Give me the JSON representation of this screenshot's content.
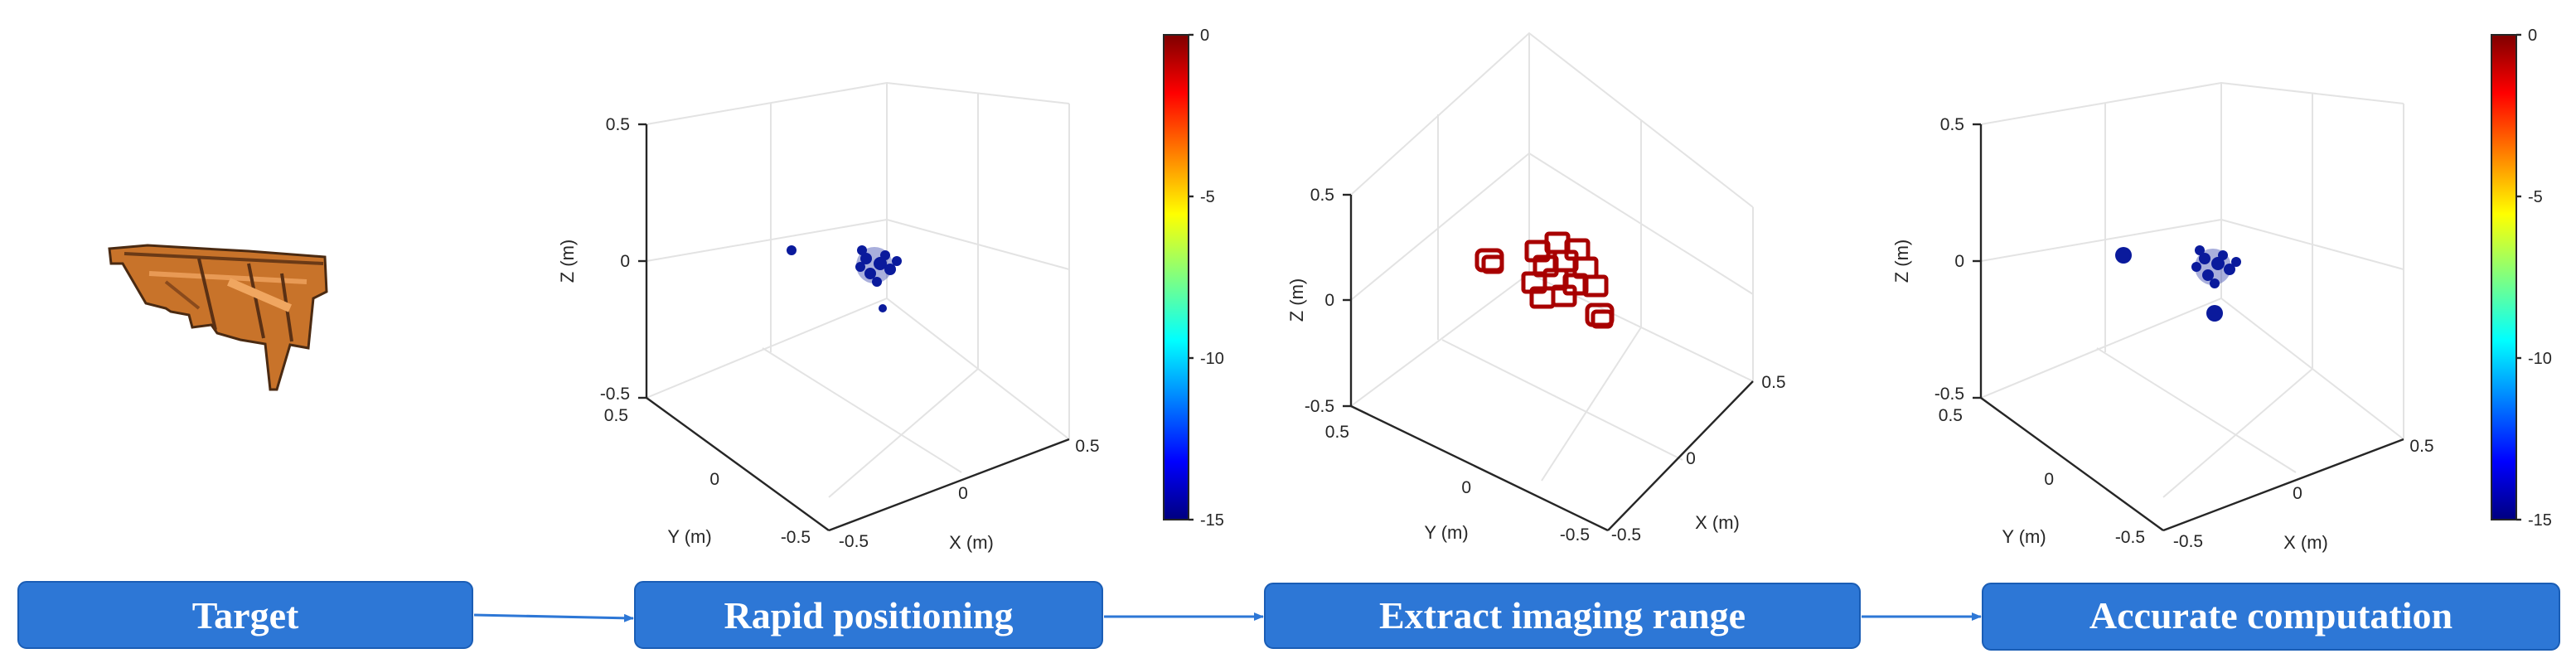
{
  "stages": [
    {
      "label": "Target"
    },
    {
      "label": "Rapid positioning"
    },
    {
      "label": "Extract imaging range"
    },
    {
      "label": "Accurate computation"
    }
  ],
  "colors": {
    "box": "#2d77d6",
    "box_border": "#1a5db5",
    "arrow": "#2d77d6",
    "point_blue": "#0a1a9c",
    "cube_red": "#a80000",
    "aircraft": "#c8732a"
  },
  "plots": [
    {
      "name": "rapid-positioning-plot",
      "axes": {
        "z_label": "Z (m)",
        "y_label": "Y (m)",
        "x_label": "X (m)",
        "z_ticks": [
          "0.5",
          "0",
          "-0.5"
        ],
        "y_ticks": [
          "0.5",
          "0",
          "-0.5"
        ],
        "x_ticks": [
          "-0.5",
          "0",
          "0.5"
        ]
      },
      "colorbar": {
        "ticks": [
          "0",
          "-5",
          "-10",
          "-15"
        ],
        "range": [
          -15,
          0
        ]
      },
      "marker": "points"
    },
    {
      "name": "extract-range-plot",
      "axes": {
        "z_label": "Z (m)",
        "y_label": "Y (m)",
        "x_label": "X (m)",
        "z_ticks": [
          "0.5",
          "0",
          "-0.5"
        ],
        "y_ticks": [
          "0.5",
          "0",
          "-0.5"
        ],
        "x_ticks": [
          "-0.5",
          "0",
          "0.5"
        ]
      },
      "marker": "cubes"
    },
    {
      "name": "accurate-computation-plot",
      "axes": {
        "z_label": "Z (m)",
        "y_label": "Y (m)",
        "x_label": "X (m)",
        "z_ticks": [
          "0.5",
          "0",
          "-0.5"
        ],
        "y_ticks": [
          "0.5",
          "0",
          "-0.5"
        ],
        "x_ticks": [
          "-0.5",
          "0",
          "0.5"
        ]
      },
      "colorbar": {
        "ticks": [
          "0",
          "-5",
          "-10",
          "-15"
        ],
        "range": [
          -15,
          0
        ]
      },
      "marker": "points"
    }
  ]
}
